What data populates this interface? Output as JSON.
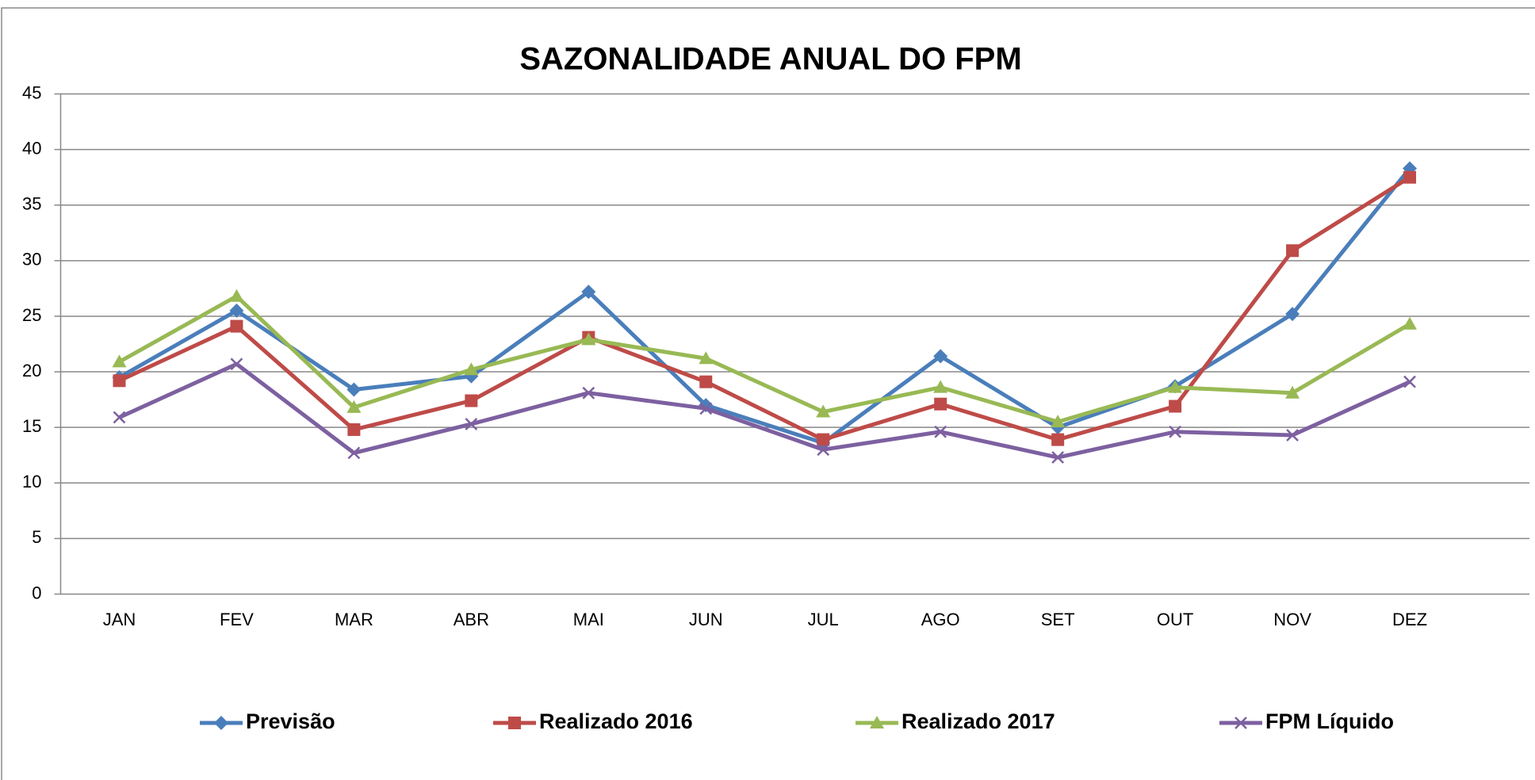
{
  "chart_data": {
    "type": "line",
    "title": "SAZONALIDADE  ANUAL DO FPM",
    "categories": [
      "JAN",
      "FEV",
      "MAR",
      "ABR",
      "MAI",
      "JUN",
      "JUL",
      "AGO",
      "SET",
      "OUT",
      "NOV",
      "DEZ"
    ],
    "series": [
      {
        "name": "Previsão",
        "color": "#4a7ebb",
        "marker": "diamond",
        "values": [
          19.5,
          25.5,
          18.4,
          19.6,
          27.2,
          17.0,
          13.6,
          21.4,
          15.0,
          18.7,
          25.2,
          38.3
        ]
      },
      {
        "name": "Realizado 2016",
        "color": "#be4b48",
        "marker": "square",
        "values": [
          19.2,
          24.1,
          14.8,
          17.4,
          23.1,
          19.1,
          13.9,
          17.1,
          13.9,
          16.9,
          30.9,
          37.5
        ]
      },
      {
        "name": "Realizado 2017",
        "color": "#98b954",
        "marker": "triangle",
        "values": [
          20.9,
          26.8,
          16.8,
          20.2,
          22.9,
          21.2,
          16.4,
          18.6,
          15.5,
          18.6,
          18.1,
          24.3
        ]
      },
      {
        "name": "FPM Líquido",
        "color": "#7d60a0",
        "marker": "x",
        "values": [
          15.9,
          20.7,
          12.7,
          15.3,
          18.1,
          16.7,
          13.0,
          14.6,
          12.3,
          14.6,
          14.3,
          19.1
        ]
      }
    ],
    "ylim": [
      0,
      45
    ],
    "yticks": [
      0,
      5,
      10,
      15,
      20,
      25,
      30,
      35,
      40,
      45
    ],
    "grid": true,
    "legend": "bottom"
  }
}
